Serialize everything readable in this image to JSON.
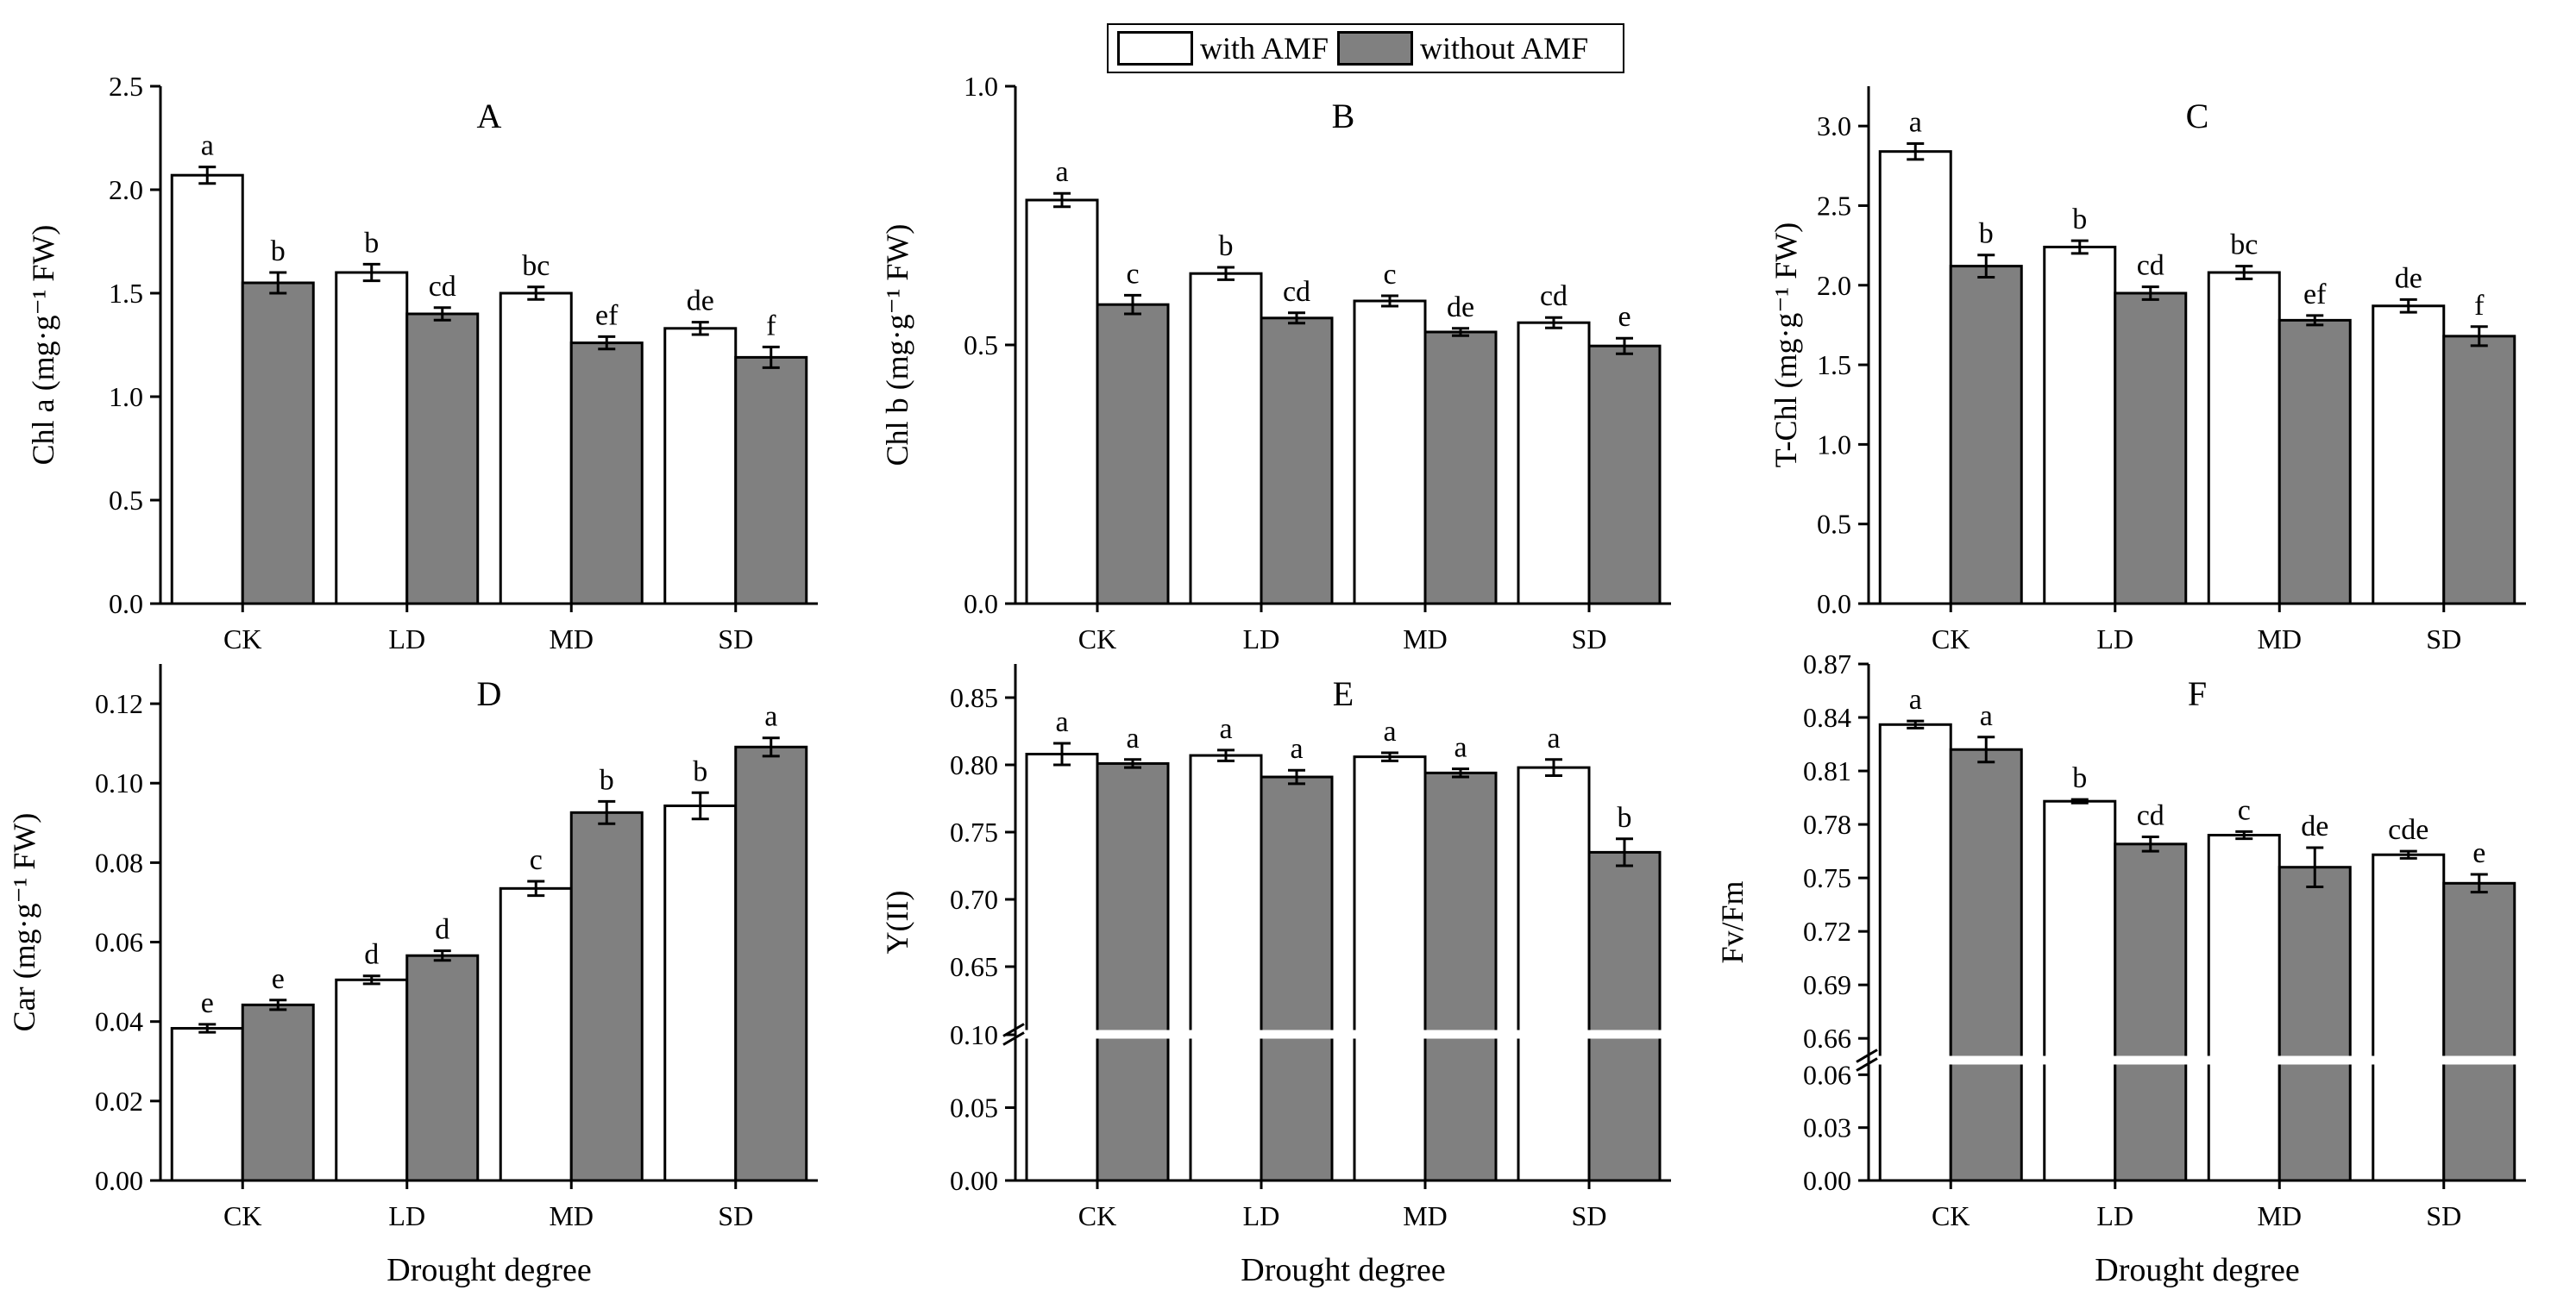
{
  "legend": [
    {
      "name": "with AMF",
      "color": "#ffffff"
    },
    {
      "name": "without AMF",
      "color": "#808080"
    }
  ],
  "chart_data": [
    {
      "type": "bar",
      "panel": "A",
      "categories": [
        "CK",
        "LD",
        "MD",
        "SD"
      ],
      "xlabel": "",
      "ylabel": "Chl a (mg·g⁻¹ FW)",
      "ylim": [
        0,
        2.5
      ],
      "yticks": [
        "0.0",
        "0.5",
        "1.0",
        "1.5",
        "2.0",
        "2.5"
      ],
      "series": [
        {
          "name": "with AMF",
          "color": "#ffffff",
          "values": [
            2.07,
            1.6,
            1.5,
            1.33
          ],
          "errors": [
            0.04,
            0.04,
            0.03,
            0.03
          ],
          "letters": [
            "a",
            "b",
            "bc",
            "de"
          ]
        },
        {
          "name": "without AMF",
          "color": "#808080",
          "values": [
            1.55,
            1.4,
            1.26,
            1.19
          ],
          "errors": [
            0.05,
            0.03,
            0.03,
            0.05
          ],
          "letters": [
            "b",
            "cd",
            "ef",
            "f"
          ]
        }
      ]
    },
    {
      "type": "bar",
      "panel": "B",
      "categories": [
        "CK",
        "LD",
        "MD",
        "SD"
      ],
      "xlabel": "",
      "ylabel": "Chl b (mg·g⁻¹ FW)",
      "ylim": [
        0,
        1.0
      ],
      "yticks": [
        "0.0",
        "0.5",
        "1.0"
      ],
      "series": [
        {
          "name": "with AMF",
          "color": "#ffffff",
          "values": [
            0.78,
            0.638,
            0.585,
            0.543
          ],
          "errors": [
            0.013,
            0.012,
            0.01,
            0.01
          ],
          "letters": [
            "a",
            "b",
            "c",
            "cd"
          ]
        },
        {
          "name": "without AMF",
          "color": "#808080",
          "values": [
            0.578,
            0.552,
            0.525,
            0.498
          ],
          "errors": [
            0.018,
            0.01,
            0.007,
            0.015
          ],
          "letters": [
            "c",
            "cd",
            "de",
            "e"
          ]
        }
      ]
    },
    {
      "type": "bar",
      "panel": "C",
      "categories": [
        "CK",
        "LD",
        "MD",
        "SD"
      ],
      "xlabel": "",
      "ylabel": "T-Chl (mg·g⁻¹ FW)",
      "ylim": [
        0,
        3.25
      ],
      "yticks": [
        "0.0",
        "0.5",
        "1.0",
        "1.5",
        "2.0",
        "2.5",
        "3.0"
      ],
      "series": [
        {
          "name": "with AMF",
          "color": "#ffffff",
          "values": [
            2.84,
            2.24,
            2.08,
            1.87
          ],
          "errors": [
            0.05,
            0.04,
            0.04,
            0.04
          ],
          "letters": [
            "a",
            "b",
            "bc",
            "de"
          ]
        },
        {
          "name": "without AMF",
          "color": "#808080",
          "values": [
            2.12,
            1.95,
            1.78,
            1.68
          ],
          "errors": [
            0.07,
            0.04,
            0.03,
            0.06
          ],
          "letters": [
            "b",
            "cd",
            "ef",
            "f"
          ]
        }
      ]
    },
    {
      "type": "bar",
      "panel": "D",
      "categories": [
        "CK",
        "LD",
        "MD",
        "SD"
      ],
      "xlabel": "Drought degree",
      "ylabel": "Car (mg·g⁻¹ FW)",
      "ylim": [
        0,
        0.13
      ],
      "yticks": [
        "0.00",
        "0.02",
        "0.04",
        "0.06",
        "0.08",
        "0.10",
        "0.12"
      ],
      "series": [
        {
          "name": "with AMF",
          "color": "#ffffff",
          "values": [
            0.0383,
            0.0505,
            0.0735,
            0.0943
          ],
          "errors": [
            0.001,
            0.001,
            0.0018,
            0.0033
          ],
          "letters": [
            "e",
            "d",
            "c",
            "b"
          ]
        },
        {
          "name": "without AMF",
          "color": "#808080",
          "values": [
            0.0442,
            0.0566,
            0.0926,
            0.1091
          ],
          "errors": [
            0.0012,
            0.0012,
            0.0028,
            0.0023
          ],
          "letters": [
            "e",
            "d",
            "b",
            "a"
          ]
        }
      ]
    },
    {
      "type": "bar",
      "panel": "E",
      "categories": [
        "CK",
        "LD",
        "MD",
        "SD"
      ],
      "xlabel": "Drought degree",
      "ylabel": "Y(II)",
      "ylim": [
        0,
        0.875
      ],
      "axis_break": [
        0.1,
        0.6
      ],
      "yticks": [
        "0.00",
        "0.05",
        "0.10",
        "0.65",
        "0.70",
        "0.75",
        "0.80",
        "0.85"
      ],
      "series": [
        {
          "name": "with AMF",
          "color": "#ffffff",
          "values": [
            0.808,
            0.807,
            0.806,
            0.798
          ],
          "errors": [
            0.008,
            0.004,
            0.003,
            0.006
          ],
          "letters": [
            "a",
            "a",
            "a",
            "a"
          ]
        },
        {
          "name": "without AMF",
          "color": "#808080",
          "values": [
            0.801,
            0.791,
            0.794,
            0.735
          ],
          "errors": [
            0.003,
            0.005,
            0.003,
            0.01
          ],
          "letters": [
            "a",
            "a",
            "a",
            "b"
          ]
        }
      ]
    },
    {
      "type": "bar",
      "panel": "F",
      "categories": [
        "CK",
        "LD",
        "MD",
        "SD"
      ],
      "xlabel": "Drought degree",
      "ylabel": "Fv/Fm",
      "ylim": [
        0,
        0.87
      ],
      "axis_break": [
        0.068,
        0.648
      ],
      "yticks": [
        "0.00",
        "0.03",
        "0.06",
        "0.66",
        "0.69",
        "0.72",
        "0.75",
        "0.78",
        "0.81",
        "0.84",
        "0.87"
      ],
      "series": [
        {
          "name": "with AMF",
          "color": "#ffffff",
          "values": [
            0.836,
            0.793,
            0.774,
            0.763
          ],
          "errors": [
            0.002,
            0.001,
            0.002,
            0.002
          ],
          "letters": [
            "a",
            "b",
            "c",
            "cde"
          ]
        },
        {
          "name": "without AMF",
          "color": "#808080",
          "values": [
            0.822,
            0.769,
            0.756,
            0.747
          ],
          "errors": [
            0.007,
            0.004,
            0.011,
            0.005
          ],
          "letters": [
            "a",
            "cd",
            "de",
            "e"
          ]
        }
      ]
    }
  ]
}
